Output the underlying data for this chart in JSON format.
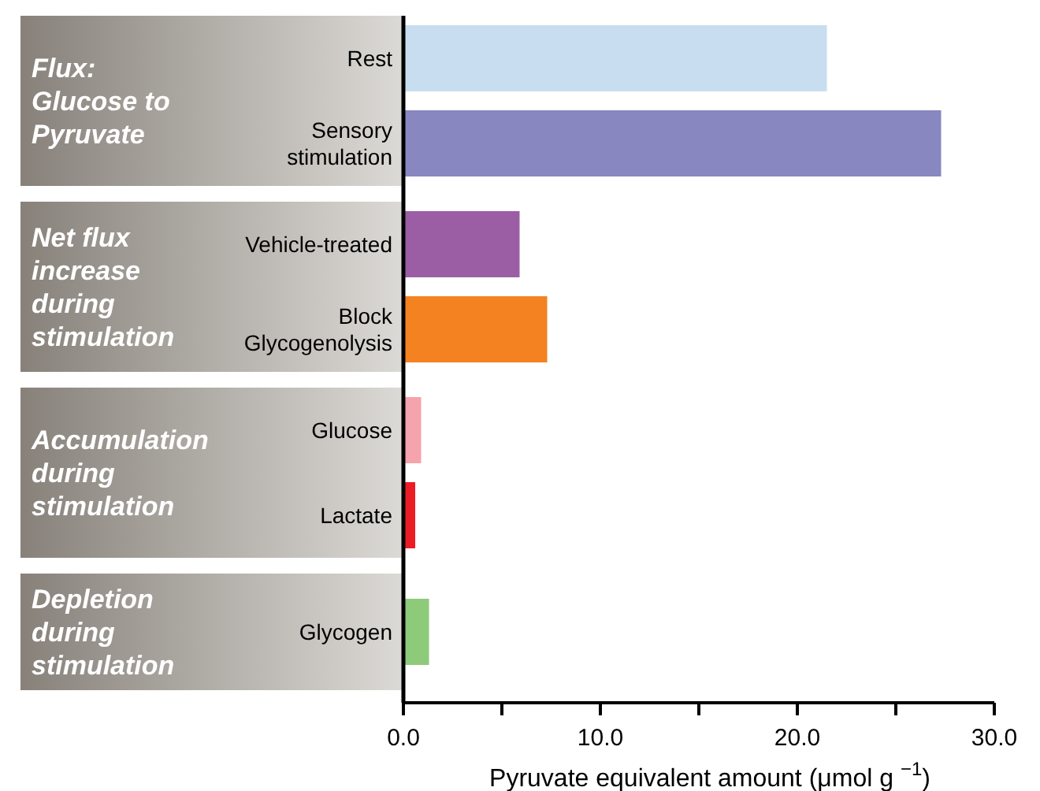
{
  "chart_data": {
    "type": "bar",
    "orientation": "horizontal",
    "categories": [
      "Rest",
      "Sensory\nstimulation",
      "Vehicle-treated",
      "Block\nGlycogenolysis",
      "Glucose",
      "Lactate",
      "Glycogen"
    ],
    "values": [
      21.5,
      27.3,
      5.9,
      7.3,
      0.9,
      0.6,
      1.3
    ],
    "colors": [
      "#c8ddf0",
      "#8887c0",
      "#9b5ea5",
      "#f48220",
      "#f5a3ac",
      "#ec1c24",
      "#8dca7a"
    ],
    "xlim": [
      0,
      30
    ],
    "xticks": [
      {
        "value": 0,
        "label": "0.0"
      },
      {
        "value": 5,
        "label": null
      },
      {
        "value": 10,
        "label": "10.0"
      },
      {
        "value": 15,
        "label": null
      },
      {
        "value": 20,
        "label": "20.0"
      },
      {
        "value": 25,
        "label": null
      },
      {
        "value": 30,
        "label": "30.0"
      }
    ],
    "xlabel": "Pyruvate equivalent amount (μmol g $^{−1}$)",
    "annotations": [
      "Flux:\nGlucose to\nPyruvate",
      "Net flux\nincrease\nduring\nstimulation",
      "Accumulation\nduring\nstimulation",
      "Depletion\nduring\nstimulation"
    ],
    "grid": false
  }
}
